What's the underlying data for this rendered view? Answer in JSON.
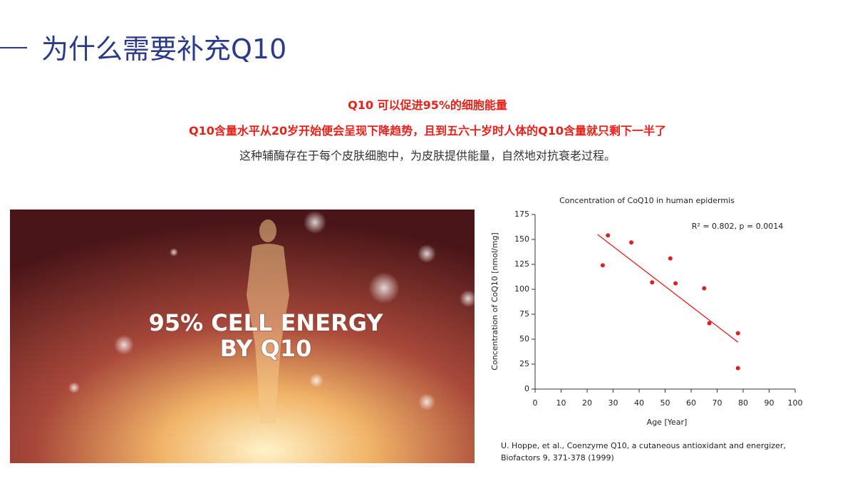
{
  "header": {
    "title": "为什么需要补充Q10"
  },
  "intro": {
    "lines": [
      "Q10 可以促进95%的细胞能量",
      "Q10含量水平从20岁开始便会呈现下降趋势，且到五六十岁时人体的Q10含量就只剩下一半了",
      "这种辅酶存在于每个皮肤细胞中，为皮肤提供能量，自然地对抗衰老过程。"
    ]
  },
  "image": {
    "caption_lines": [
      "95% CELL ENERGY",
      "BY Q10"
    ]
  },
  "chart_data": {
    "type": "scatter",
    "title": "Concentration of CoQ10 in human epidermis",
    "x_label": "Age [Year]",
    "y_label": "Concentration of CoQ10 [nmol/mg]",
    "annotation": "R² = 0.802,  p = 0.0014",
    "x": [
      26,
      28,
      37,
      45,
      52,
      54,
      65,
      67,
      78,
      78
    ],
    "values": [
      124,
      154,
      147,
      107,
      131,
      106,
      101,
      66,
      56,
      21
    ],
    "color": "#e02020",
    "trendline": {
      "x": [
        24,
        78
      ],
      "values": [
        155,
        47
      ],
      "color": "#e02020"
    },
    "xlim": [
      0,
      100
    ],
    "xticks": [
      0,
      10,
      20,
      30,
      40,
      50,
      60,
      70,
      80,
      90,
      100
    ],
    "ylim": [
      0,
      175
    ],
    "yticks": [
      0,
      25,
      50,
      75,
      100,
      125,
      150,
      175
    ],
    "source": [
      "U. Hoppe, et al., Coenzyme Q10, a cutaneous antioxidant and energizer,",
      "Biofactors 9, 371-378 (1999)"
    ]
  }
}
